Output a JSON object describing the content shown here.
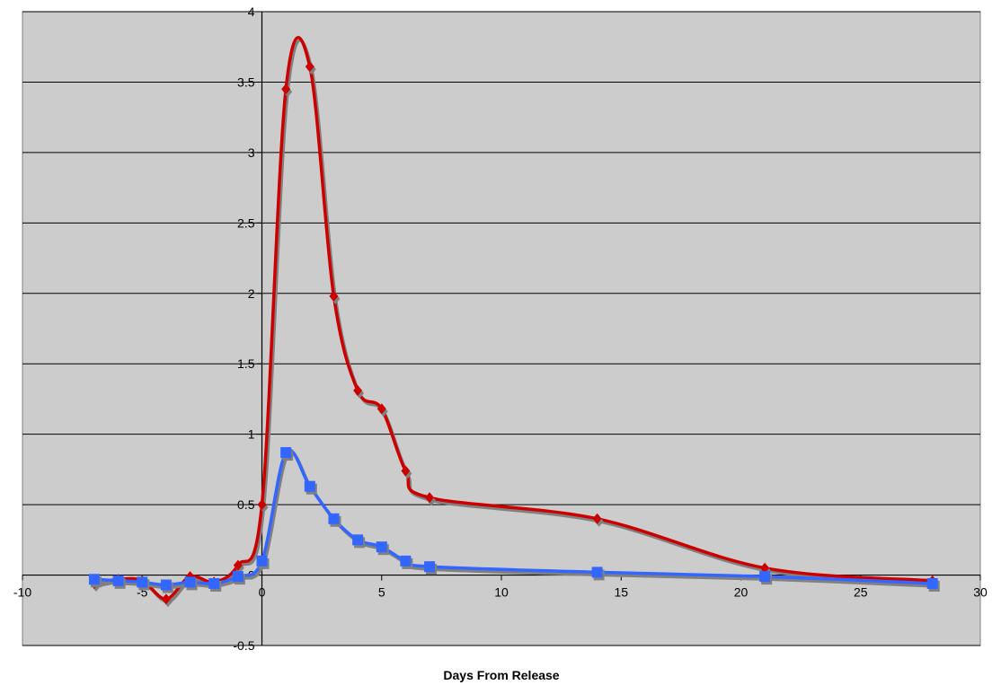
{
  "chart_data": {
    "type": "line",
    "title": "",
    "xlabel": "Days From Release",
    "ylabel": "",
    "xlim": [
      -10,
      30
    ],
    "ylim": [
      -0.5,
      4
    ],
    "xticks": [
      -10,
      -5,
      0,
      5,
      10,
      15,
      20,
      25,
      30
    ],
    "yticks": [
      -0.5,
      0,
      0.5,
      1,
      1.5,
      2,
      2.5,
      3,
      3.5,
      4
    ],
    "xtick_labels": [
      "-10",
      "-5",
      "0",
      "5",
      "10",
      "15",
      "20",
      "25",
      "30"
    ],
    "ytick_labels": [
      "-0.5",
      "0",
      "0.5",
      "1",
      "1.5",
      "2",
      "2.5",
      "3",
      "3.5",
      "4"
    ],
    "grid": {
      "horizontal": true,
      "vertical": false
    },
    "plot_background": "#cccccc",
    "smoothed": true,
    "series": [
      {
        "color": "#cc0000",
        "marker": "diamond",
        "points": [
          [
            -7,
            -0.06
          ],
          [
            -6,
            -0.03
          ],
          [
            -5,
            -0.04
          ],
          [
            -4,
            -0.17
          ],
          [
            -3,
            -0.01
          ],
          [
            -2,
            -0.05
          ],
          [
            -1,
            0.07
          ],
          [
            0,
            0.5
          ],
          [
            1,
            3.45
          ],
          [
            2,
            3.61
          ],
          [
            3,
            1.98
          ],
          [
            4,
            1.31
          ],
          [
            5,
            1.18
          ],
          [
            6,
            0.74
          ],
          [
            7,
            0.55
          ],
          [
            14,
            0.4
          ],
          [
            21,
            0.05
          ],
          [
            28,
            -0.04
          ]
        ]
      },
      {
        "color": "#3366ff",
        "marker": "square",
        "points": [
          [
            -7,
            -0.03
          ],
          [
            -6,
            -0.04
          ],
          [
            -5,
            -0.05
          ],
          [
            -4,
            -0.07
          ],
          [
            -3,
            -0.05
          ],
          [
            -2,
            -0.06
          ],
          [
            -1,
            -0.01
          ],
          [
            0,
            0.1
          ],
          [
            1,
            0.87
          ],
          [
            2,
            0.63
          ],
          [
            3,
            0.4
          ],
          [
            4,
            0.25
          ],
          [
            5,
            0.2
          ],
          [
            6,
            0.1
          ],
          [
            7,
            0.06
          ],
          [
            14,
            0.02
          ],
          [
            21,
            -0.01
          ],
          [
            28,
            -0.06
          ]
        ]
      }
    ]
  }
}
